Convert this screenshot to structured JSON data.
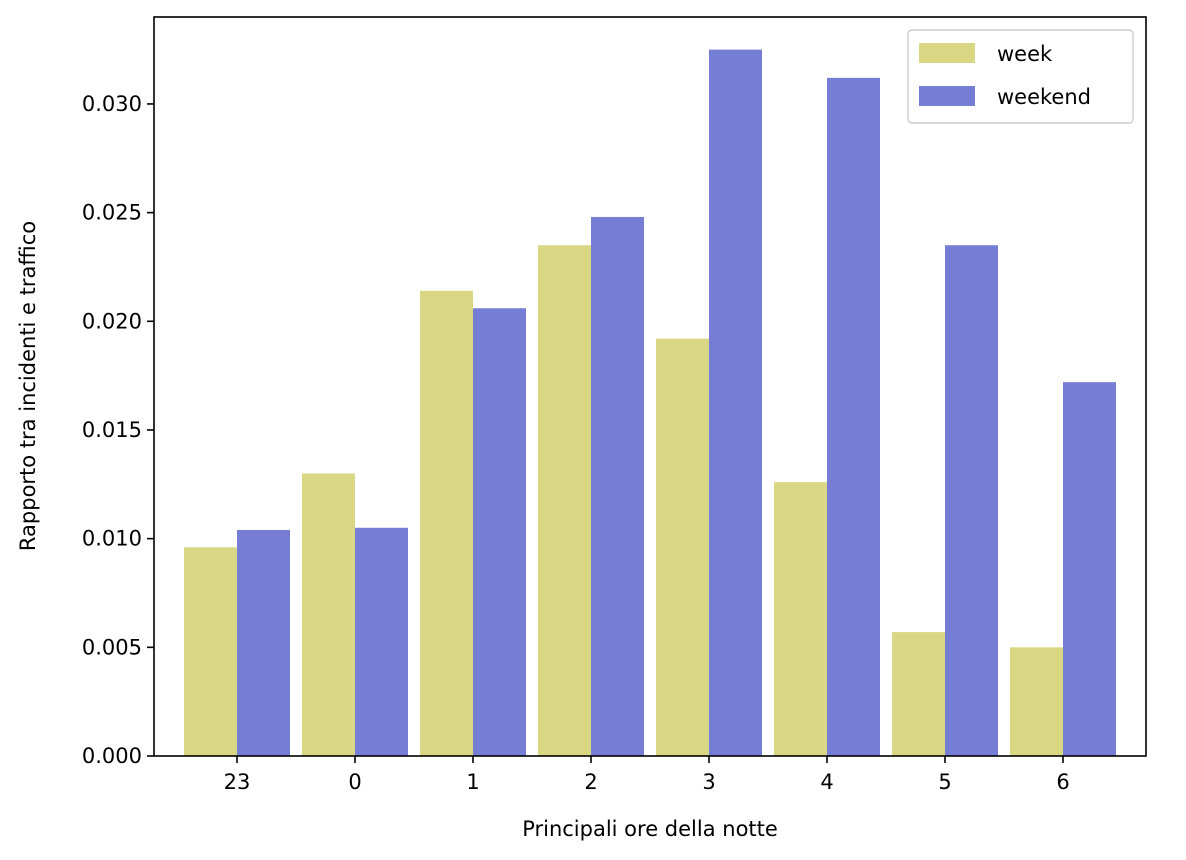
{
  "chart_data": {
    "type": "bar",
    "title": "",
    "xlabel": "Principali ore della notte",
    "ylabel": "Rapporto tra incidenti e traffico",
    "categories": [
      "23",
      "0",
      "1",
      "2",
      "3",
      "4",
      "5",
      "6"
    ],
    "series": [
      {
        "name": "week",
        "color": "#d9d783",
        "values": [
          0.0096,
          0.013,
          0.0214,
          0.0235,
          0.0192,
          0.0126,
          0.0057,
          0.005
        ]
      },
      {
        "name": "weekend",
        "color": "#767dd4",
        "values": [
          0.0104,
          0.0105,
          0.0206,
          0.0248,
          0.0325,
          0.0312,
          0.0235,
          0.0172
        ]
      }
    ],
    "ylim": [
      0,
      0.034
    ],
    "yticks": [
      "0.000",
      "0.005",
      "0.010",
      "0.015",
      "0.020",
      "0.025",
      "0.030"
    ],
    "legend_position": "top-right",
    "grid": false
  }
}
